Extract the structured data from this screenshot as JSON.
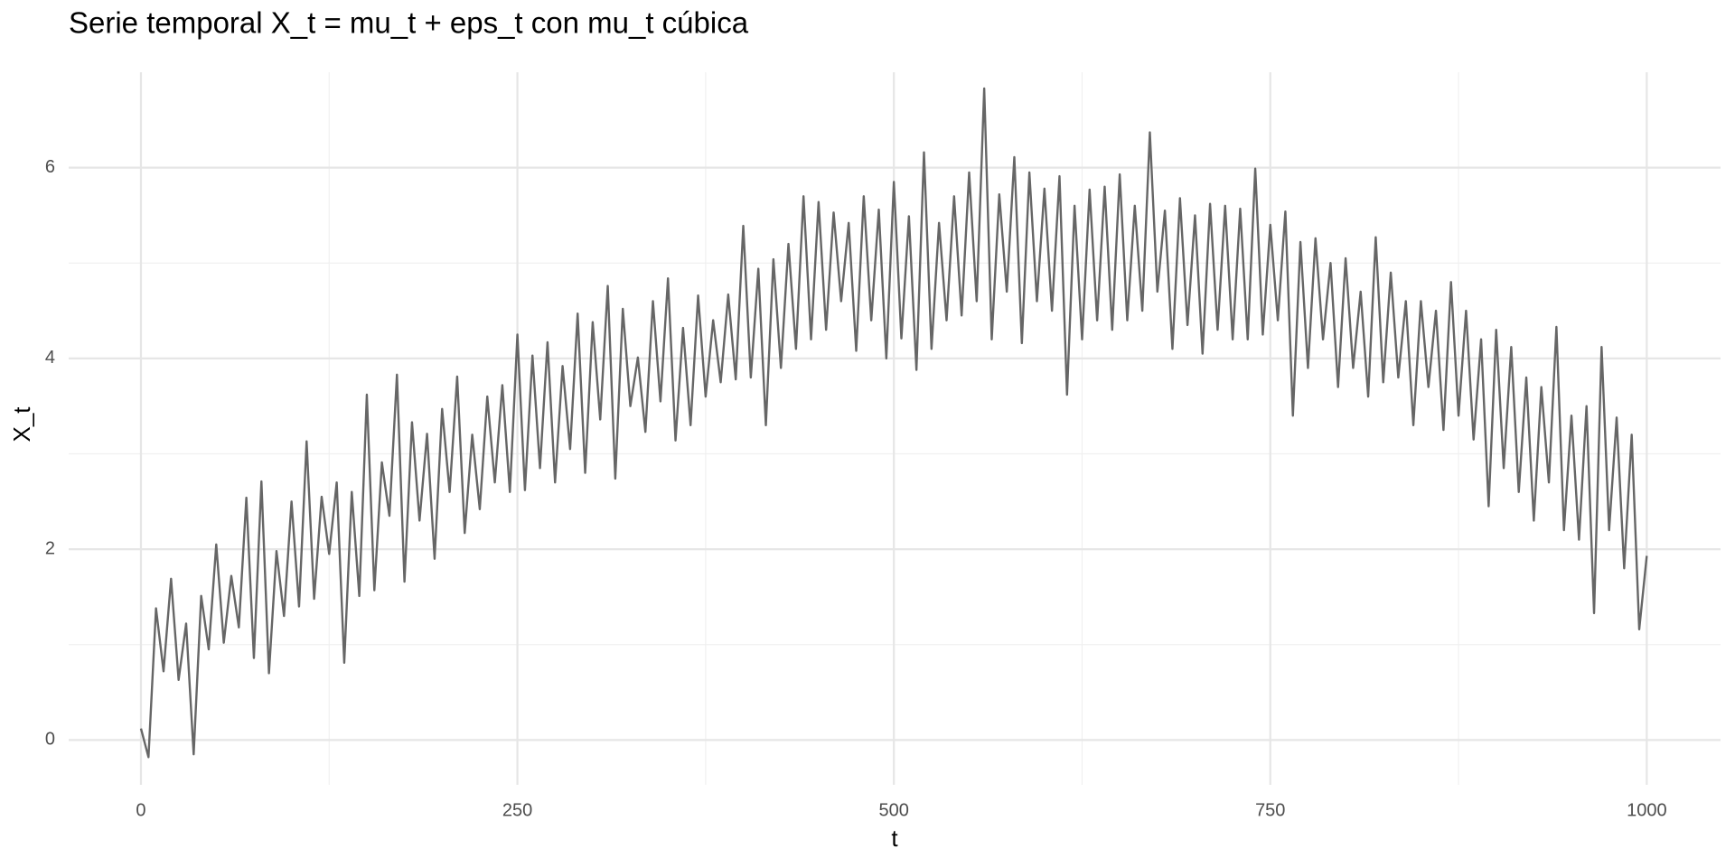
{
  "chart_data": {
    "type": "line",
    "title": "Serie temporal X_t = mu_t + eps_t con mu_t cúbica",
    "xlabel": "t",
    "ylabel": "X_t",
    "color": "#666666",
    "xlim": [
      -48,
      1049
    ],
    "xticks": [
      0,
      250,
      500,
      750,
      1000
    ],
    "ylim": [
      -0.47,
      7.0
    ],
    "yticks": [
      0,
      2,
      4,
      6
    ],
    "grid": true,
    "x": [
      0,
      5,
      10,
      15,
      20,
      25,
      30,
      35,
      40,
      45,
      50,
      55,
      60,
      65,
      70,
      75,
      80,
      85,
      90,
      95,
      100,
      105,
      110,
      115,
      120,
      125,
      130,
      135,
      140,
      145,
      150,
      155,
      160,
      165,
      170,
      175,
      180,
      185,
      190,
      195,
      200,
      205,
      210,
      215,
      220,
      225,
      230,
      235,
      240,
      245,
      250,
      255,
      260,
      265,
      270,
      275,
      280,
      285,
      290,
      295,
      300,
      305,
      310,
      315,
      320,
      325,
      330,
      335,
      340,
      345,
      350,
      355,
      360,
      365,
      370,
      375,
      380,
      385,
      390,
      395,
      400,
      405,
      410,
      415,
      420,
      425,
      430,
      435,
      440,
      445,
      450,
      455,
      460,
      465,
      470,
      475,
      480,
      485,
      490,
      495,
      500,
      505,
      510,
      515,
      520,
      525,
      530,
      535,
      540,
      545,
      550,
      555,
      560,
      565,
      570,
      575,
      580,
      585,
      590,
      595,
      600,
      605,
      610,
      615,
      620,
      625,
      630,
      635,
      640,
      645,
      650,
      655,
      660,
      665,
      670,
      675,
      680,
      685,
      690,
      695,
      700,
      705,
      710,
      715,
      720,
      725,
      730,
      735,
      740,
      745,
      750,
      755,
      760,
      765,
      770,
      775,
      780,
      785,
      790,
      795,
      800,
      805,
      810,
      815,
      820,
      825,
      830,
      835,
      840,
      845,
      850,
      855,
      860,
      865,
      870,
      875,
      880,
      885,
      890,
      895,
      900,
      905,
      910,
      915,
      920,
      925,
      930,
      935,
      940,
      945,
      950,
      955,
      960,
      965,
      970,
      975,
      980,
      985,
      990,
      995,
      1000
    ],
    "values": [
      0.12,
      -0.18,
      1.38,
      0.72,
      1.69,
      0.63,
      1.22,
      -0.15,
      1.51,
      0.95,
      2.05,
      1.02,
      1.72,
      1.18,
      2.54,
      0.86,
      2.71,
      0.7,
      1.98,
      1.3,
      2.5,
      1.4,
      3.13,
      1.48,
      2.55,
      1.95,
      2.7,
      0.81,
      2.6,
      1.51,
      3.62,
      1.57,
      2.91,
      2.35,
      3.83,
      1.66,
      3.33,
      2.3,
      3.21,
      1.9,
      3.47,
      2.6,
      3.81,
      2.17,
      3.2,
      2.42,
      3.6,
      2.7,
      3.72,
      2.6,
      4.25,
      2.62,
      4.03,
      2.85,
      4.17,
      2.7,
      3.92,
      3.05,
      4.47,
      2.8,
      4.38,
      3.36,
      4.76,
      2.74,
      4.52,
      3.5,
      4.01,
      3.23,
      4.6,
      3.55,
      4.84,
      3.14,
      4.32,
      3.3,
      4.66,
      3.6,
      4.4,
      3.75,
      4.67,
      3.78,
      5.39,
      3.8,
      4.94,
      3.3,
      5.04,
      3.9,
      5.2,
      4.1,
      5.7,
      4.2,
      5.64,
      4.3,
      5.53,
      4.6,
      5.42,
      4.08,
      5.7,
      4.4,
      5.56,
      4.0,
      5.85,
      4.21,
      5.49,
      3.88,
      6.16,
      4.1,
      5.42,
      4.4,
      5.7,
      4.45,
      5.95,
      4.6,
      6.83,
      4.2,
      5.72,
      4.7,
      6.11,
      4.16,
      5.95,
      4.6,
      5.78,
      4.5,
      5.91,
      3.62,
      5.6,
      4.2,
      5.77,
      4.4,
      5.8,
      4.3,
      5.93,
      4.4,
      5.6,
      4.5,
      6.37,
      4.7,
      5.55,
      4.1,
      5.68,
      4.35,
      5.5,
      4.05,
      5.62,
      4.3,
      5.6,
      4.2,
      5.57,
      4.2,
      5.99,
      4.25,
      5.4,
      4.4,
      5.54,
      3.4,
      5.22,
      3.9,
      5.26,
      4.2,
      5.0,
      3.7,
      5.05,
      3.9,
      4.7,
      3.6,
      5.27,
      3.75,
      4.9,
      3.8,
      4.6,
      3.3,
      4.6,
      3.7,
      4.5,
      3.25,
      4.8,
      3.4,
      4.5,
      3.15,
      4.2,
      2.45,
      4.3,
      2.85,
      4.12,
      2.6,
      3.8,
      2.3,
      3.7,
      2.7,
      4.33,
      2.2,
      3.4,
      2.1,
      3.5,
      1.33,
      4.12,
      2.2,
      3.38,
      1.8,
      3.2,
      1.16,
      1.93
    ]
  }
}
